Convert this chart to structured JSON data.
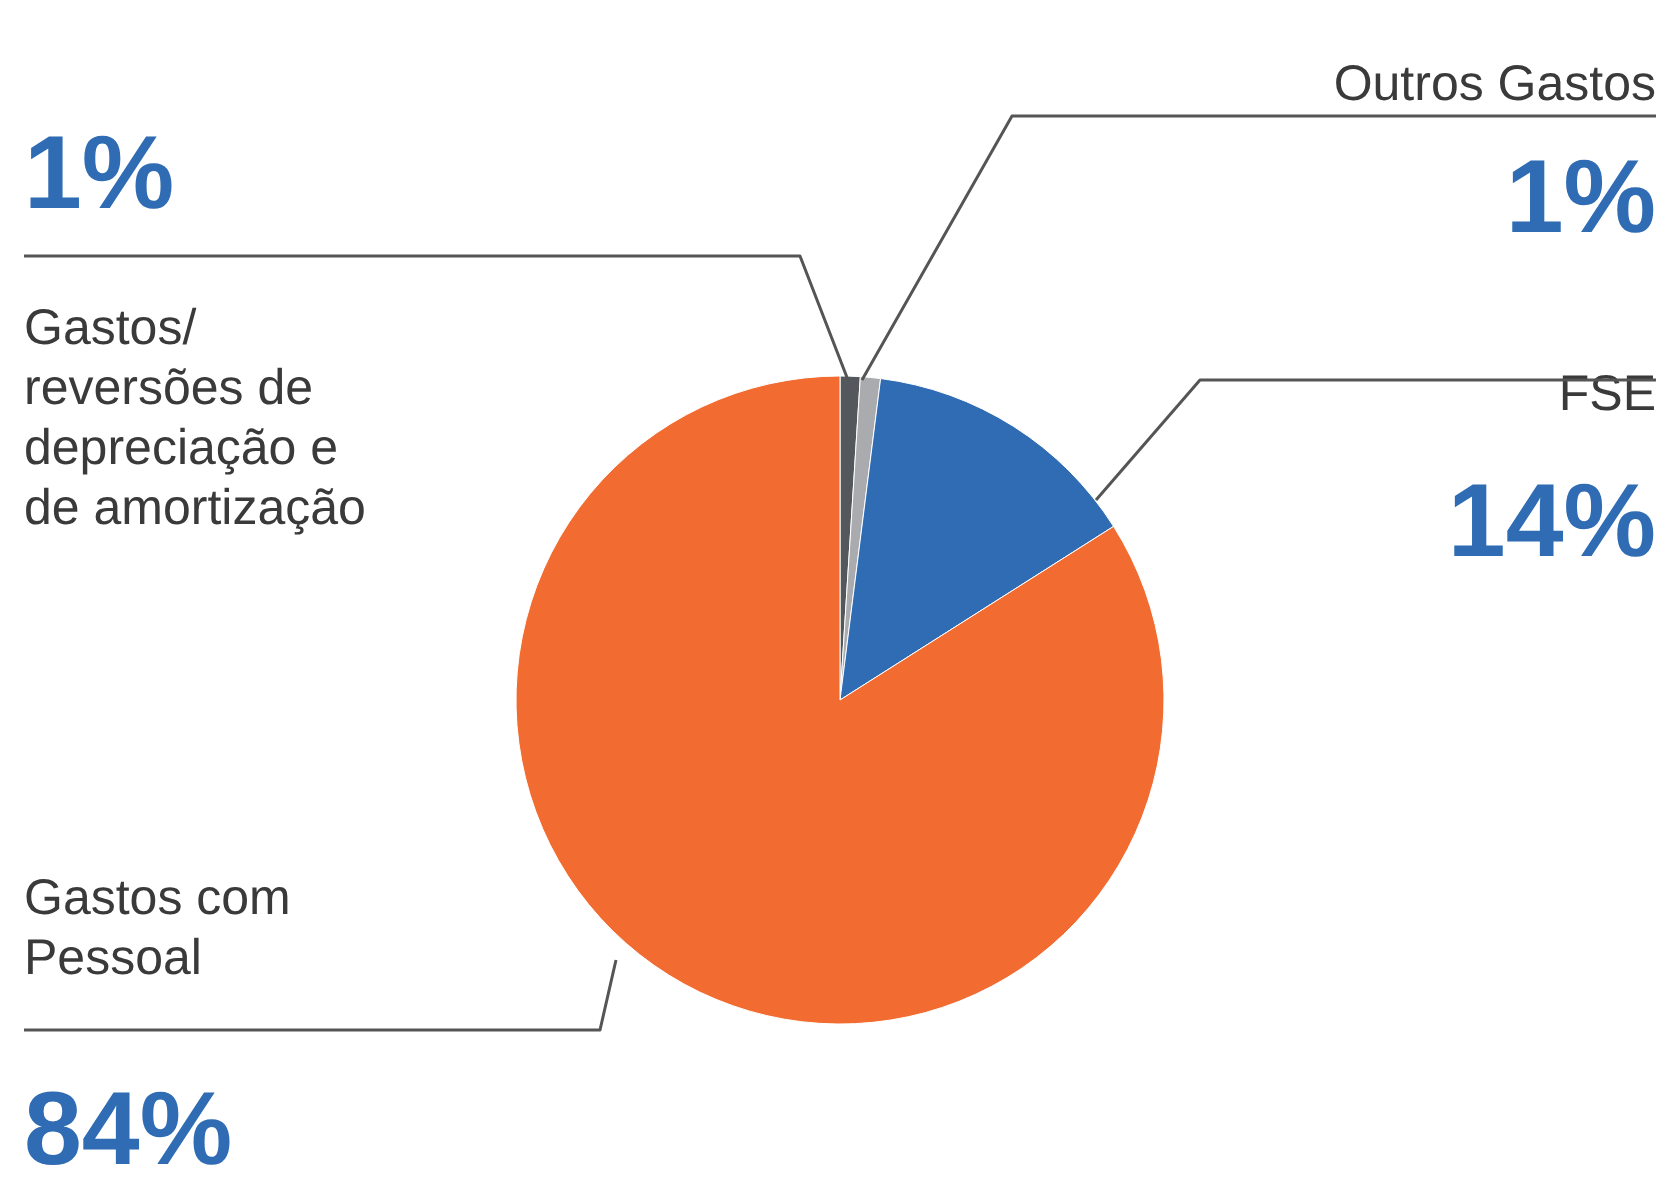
{
  "chart_data": {
    "type": "pie",
    "categories": [
      "Gastos/ reversões de depreciação e de amortização",
      "Outros Gastos",
      "FSE",
      "Gastos com Pessoal"
    ],
    "values": [
      1,
      1,
      14,
      84
    ],
    "colors": [
      "#54585c",
      "#a9abae",
      "#2f6cb3",
      "#f26b30"
    ],
    "value_labels": [
      "1%",
      "1%",
      "14%",
      "84%"
    ]
  }
}
